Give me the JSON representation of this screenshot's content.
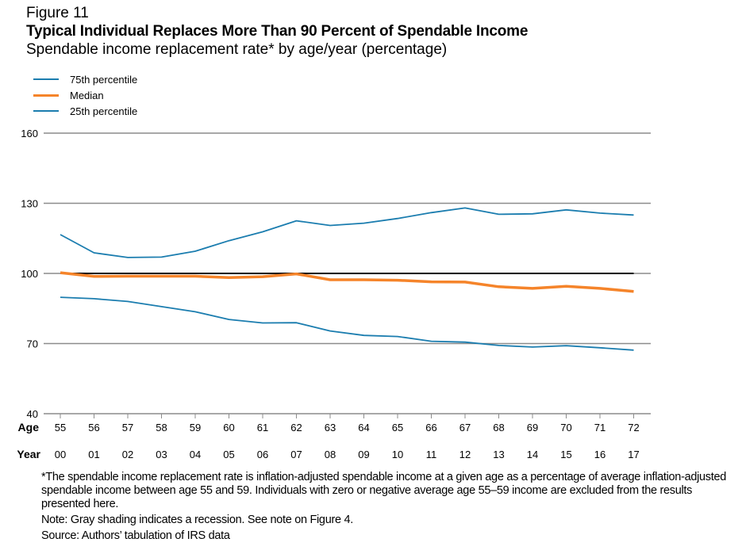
{
  "figure_label": "Figure 11",
  "title": "Typical Individual Replaces More Than 90 Percent of Spendable Income",
  "subtitle": "Spendable income replacement rate* by age/year (percentage)",
  "footnotes": {
    "definition": "*The spendable income replacement rate is inflation-adjusted spendable income at a given age as a percentage of average inflation-adjusted spendable income between age 55 and 59. Individuals with zero or negative average age 55–59 income are excluded from the results presented here.",
    "note": "Note: Gray shading indicates a recession. See note on Figure 4.",
    "source": "Source: Authors’ tabulation of IRS data"
  },
  "chart_data": {
    "type": "line",
    "title": "Typical Individual Replaces More Than 90 Percent of Spendable Income",
    "subtitle": "Spendable income replacement rate* by age/year (percentage)",
    "xlabel": "Age / Year",
    "ylabel": "",
    "x_row_labels": [
      "Age",
      "Year"
    ],
    "categories": [
      "55",
      "56",
      "57",
      "58",
      "59",
      "60",
      "61",
      "62",
      "63",
      "64",
      "65",
      "66",
      "67",
      "68",
      "69",
      "70",
      "71",
      "72"
    ],
    "years": [
      "00",
      "01",
      "02",
      "03",
      "04",
      "05",
      "06",
      "07",
      "08",
      "09",
      "10",
      "11",
      "12",
      "13",
      "14",
      "15",
      "16",
      "17"
    ],
    "ylim": [
      40,
      160
    ],
    "yticks": [
      40,
      70,
      100,
      130,
      160
    ],
    "grid": true,
    "legend_position": "top-left",
    "reference_line": {
      "value": 100,
      "color": "#000000"
    },
    "series": [
      {
        "name": "75th percentile",
        "color": "#1B7DAF",
        "width": "thin",
        "values": [
          116.6,
          108.8,
          106.8,
          107.0,
          109.5,
          114.0,
          117.8,
          122.5,
          120.5,
          121.5,
          123.5,
          126.0,
          128.0,
          125.3,
          125.5,
          127.2,
          125.8,
          125.0
        ]
      },
      {
        "name": "Median",
        "color": "#F5842A",
        "width": "thick",
        "values": [
          100.3,
          98.7,
          98.8,
          98.8,
          98.8,
          98.2,
          98.6,
          99.8,
          97.3,
          97.3,
          97.1,
          96.4,
          96.3,
          94.3,
          93.6,
          94.5,
          93.6,
          92.3
        ]
      },
      {
        "name": "25th percentile",
        "color": "#1B7DAF",
        "width": "thin",
        "values": [
          89.8,
          89.2,
          88.0,
          85.8,
          83.6,
          80.3,
          78.8,
          78.9,
          75.4,
          73.5,
          73.0,
          71.0,
          70.6,
          69.2,
          68.5,
          69.1,
          68.2,
          67.2
        ]
      }
    ]
  }
}
